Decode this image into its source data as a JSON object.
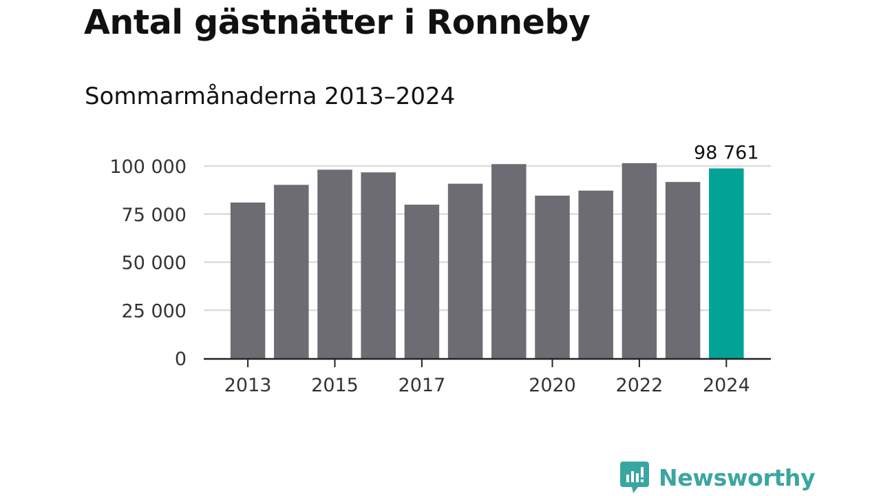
{
  "title": "Antal gästnätter i Ronneby",
  "subtitle": "Sommarmånaderna 2013–2024",
  "brand": {
    "name": "Newsworthy",
    "icon": "newsworthy-logo-icon",
    "color": "#3aa6a0"
  },
  "chart_data": {
    "type": "bar",
    "categories": [
      "2013",
      "2014",
      "2015",
      "2016",
      "2017",
      "2018",
      "2019",
      "2020",
      "2021",
      "2022",
      "2023",
      "2024"
    ],
    "values": [
      81000,
      90200,
      98100,
      96700,
      79900,
      90800,
      101000,
      84600,
      87200,
      101500,
      91700,
      98761
    ],
    "highlight_index": 11,
    "highlight_label": "98 761",
    "bar_color": "#6d6c73",
    "highlight_color": "#00a396",
    "ylim": [
      0,
      100000
    ],
    "yticks": [
      {
        "value": 0,
        "label": "0"
      },
      {
        "value": 25000,
        "label": "25 000"
      },
      {
        "value": 50000,
        "label": "50 000"
      },
      {
        "value": 75000,
        "label": "75 000"
      },
      {
        "value": 100000,
        "label": "100 000"
      }
    ],
    "xticks": [
      "2013",
      "2015",
      "2017",
      "2020",
      "2022",
      "2024"
    ],
    "grid": true
  }
}
